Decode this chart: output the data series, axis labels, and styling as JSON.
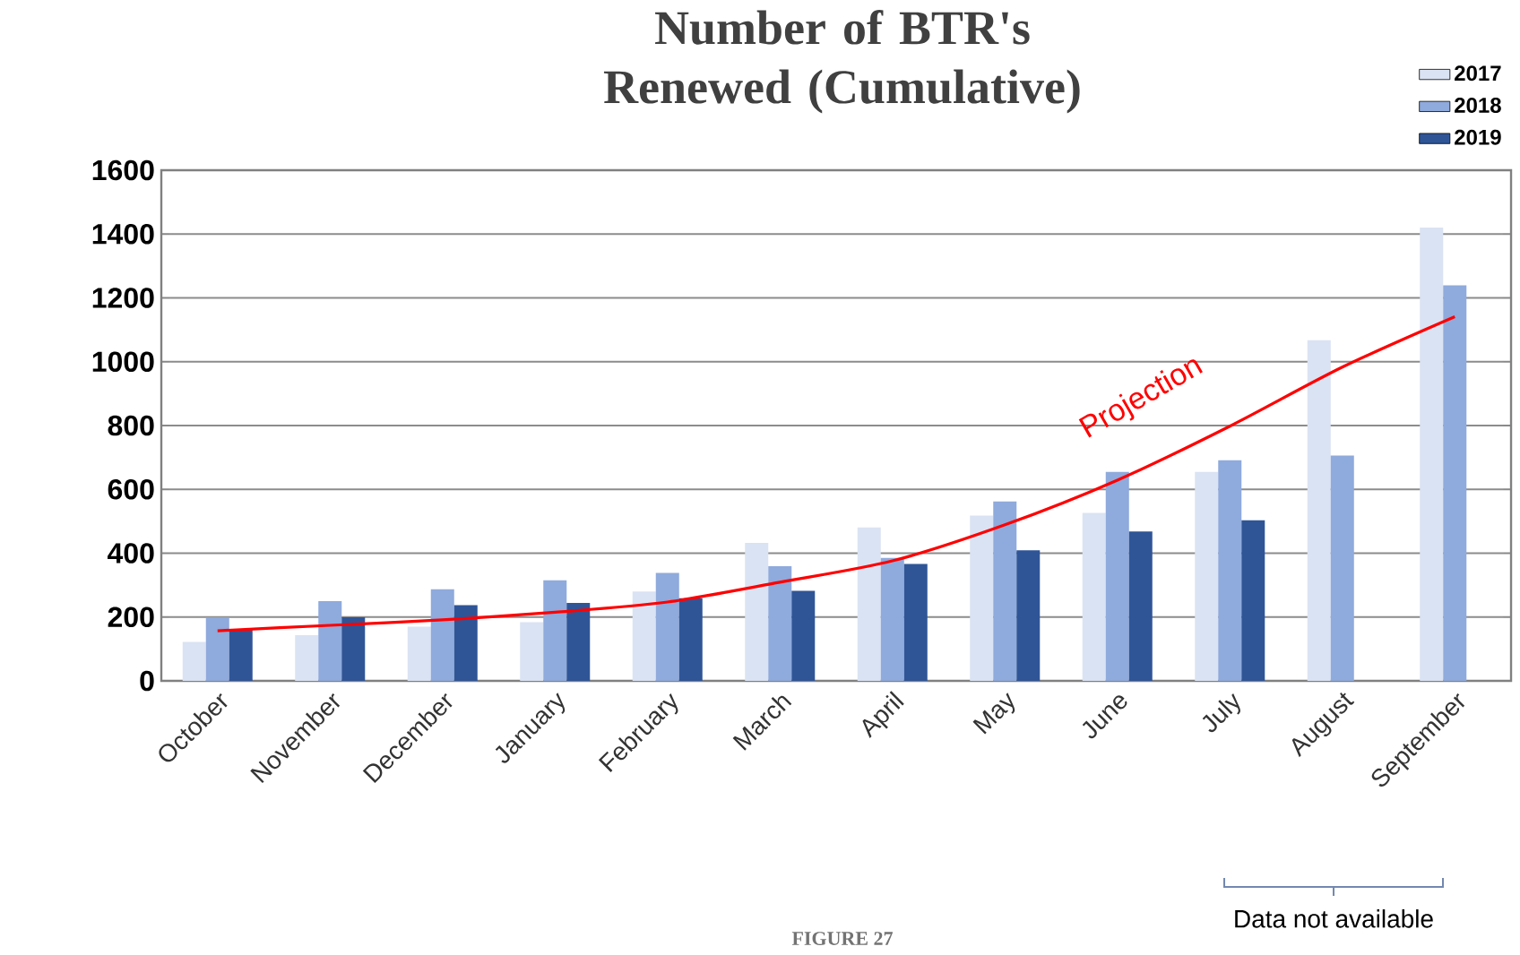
{
  "chart_data": {
    "type": "bar",
    "title": "Number of BTR's Renewed (Cumulative)",
    "categories": [
      "October",
      "November",
      "December",
      "January",
      "February",
      "March",
      "April",
      "May",
      "June",
      "July",
      "August",
      "September"
    ],
    "series": [
      {
        "name": "2017",
        "color": "#dae3f3",
        "values": [
          122,
          143,
          170,
          184,
          280,
          432,
          481,
          518,
          526,
          655,
          1067,
          1420
        ]
      },
      {
        "name": "2018",
        "color": "#8faadc",
        "values": [
          199,
          250,
          287,
          315,
          338,
          359,
          385,
          562,
          655,
          691,
          706,
          1239
        ]
      },
      {
        "name": "2019",
        "color": "#2f5597",
        "values": [
          160,
          199,
          237,
          244,
          259,
          282,
          366,
          409,
          468,
          503,
          null,
          null
        ]
      },
      {
        "name": "Projection",
        "type": "line",
        "color": "#ff0000",
        "values": [
          157,
          174,
          191,
          215,
          247,
          309,
          376,
          489,
          629,
          798,
          983,
          1141
        ]
      }
    ],
    "ylim": [
      0,
      1600
    ],
    "yticks": [
      0,
      200,
      400,
      600,
      800,
      1000,
      1200,
      1400,
      1600
    ],
    "grid": "y",
    "legend": "top right",
    "annotations": [
      "Data not available",
      "FIGURE 27"
    ]
  }
}
